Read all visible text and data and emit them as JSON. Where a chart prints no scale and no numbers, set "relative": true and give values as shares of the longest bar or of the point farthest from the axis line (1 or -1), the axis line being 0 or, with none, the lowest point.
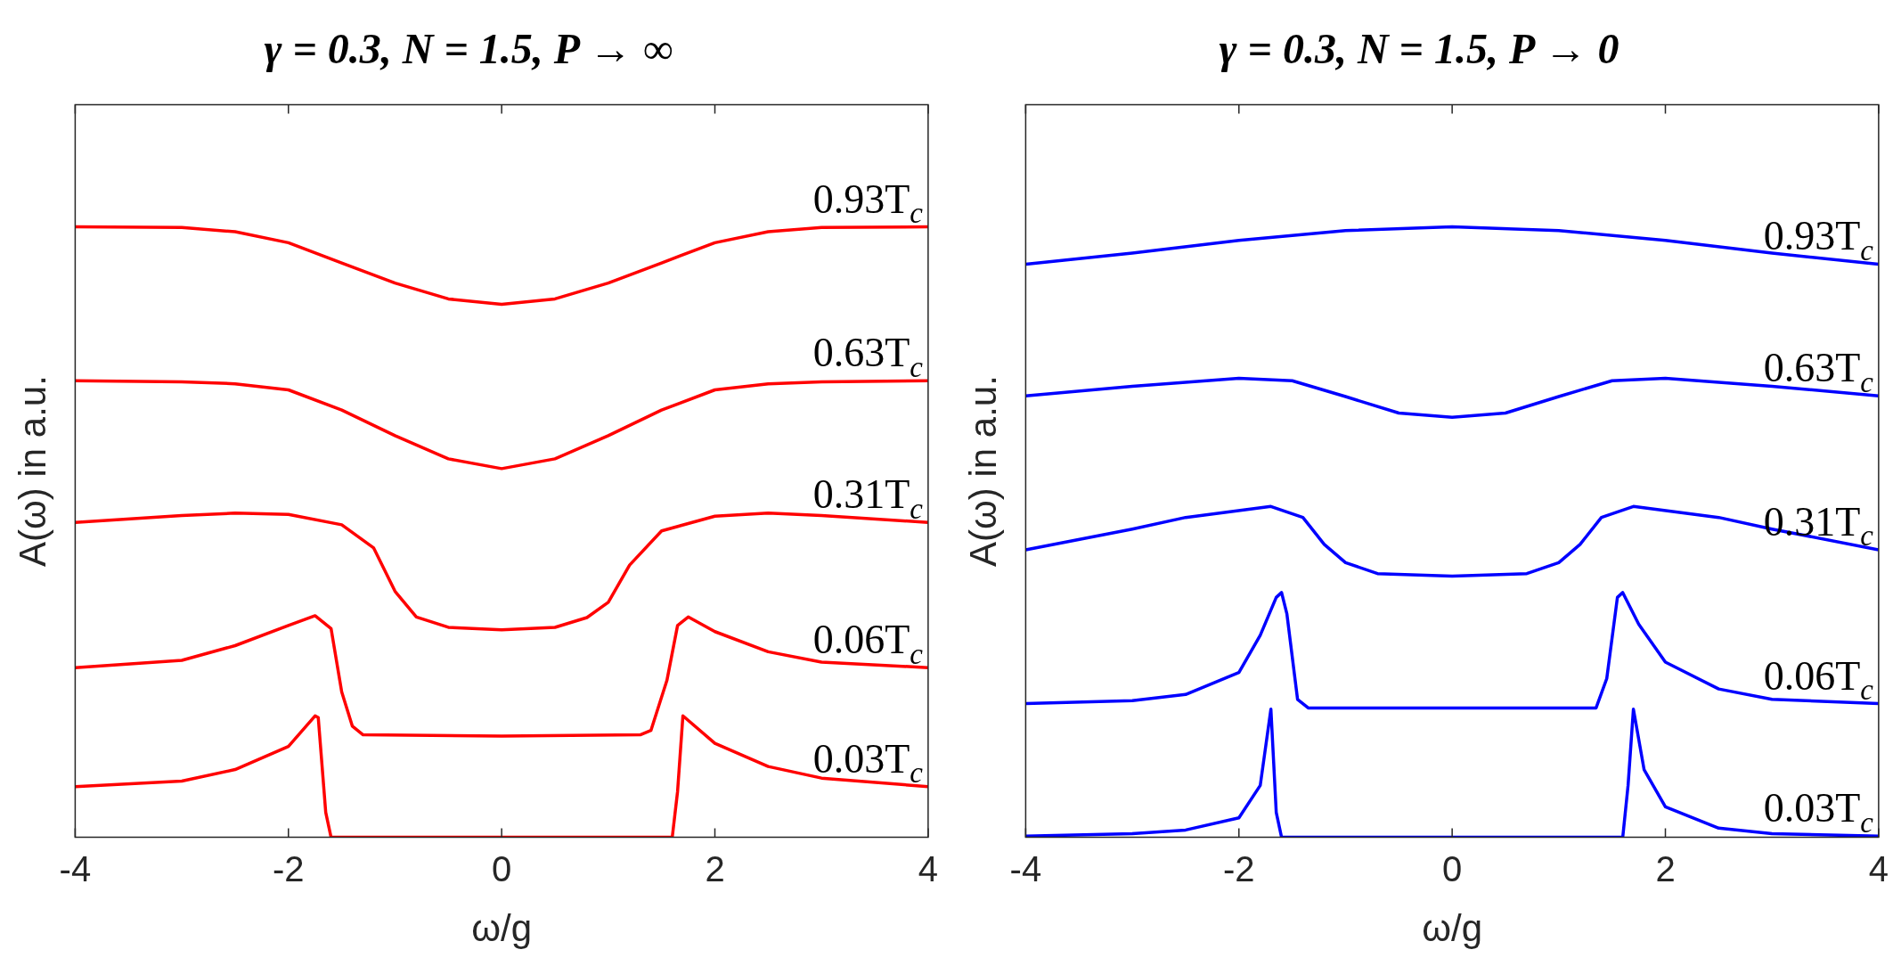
{
  "chart_data": [
    {
      "type": "line",
      "title": "γ = 0.3, N = 1.5, P → ∞",
      "xlabel": "ω/g",
      "ylabel": "A(ω) in a.u.",
      "relative": true,
      "xlim": [
        -4,
        4
      ],
      "xticks": [
        -4,
        -2,
        0,
        2,
        4
      ],
      "grid": false,
      "legend": false,
      "marker": "none",
      "line_style": "solid",
      "series": [
        {
          "name": "0.93T$_{c}$",
          "color": "#ff0000",
          "x": [
            -4,
            -3,
            -2.5,
            -2,
            -1.5,
            -1,
            -0.5,
            0,
            0.5,
            1,
            1.5,
            2,
            2.5,
            3,
            4
          ],
          "values": [
            1.0,
            0.999,
            0.992,
            0.974,
            0.941,
            0.908,
            0.882,
            0.873,
            0.882,
            0.908,
            0.941,
            0.974,
            0.992,
            0.999,
            1.0
          ]
        },
        {
          "name": "0.63T$_{c}$",
          "color": "#ff0000",
          "x": [
            -4,
            -3,
            -2.5,
            -2,
            -1.5,
            -1,
            -0.5,
            0,
            0.5,
            1,
            1.5,
            2,
            2.5,
            3,
            4
          ],
          "values": [
            0.748,
            0.746,
            0.743,
            0.733,
            0.7,
            0.658,
            0.62,
            0.604,
            0.62,
            0.658,
            0.7,
            0.733,
            0.743,
            0.746,
            0.748
          ]
        },
        {
          "name": "0.31T$_{c}$",
          "color": "#ff0000",
          "x": [
            -4,
            -3,
            -2.5,
            -2,
            -1.5,
            -1.2,
            -1,
            -0.8,
            -0.5,
            0,
            0.5,
            0.8,
            1,
            1.2,
            1.5,
            2,
            2.5,
            3,
            4
          ],
          "values": [
            0.516,
            0.527,
            0.531,
            0.529,
            0.512,
            0.474,
            0.403,
            0.361,
            0.344,
            0.34,
            0.344,
            0.36,
            0.385,
            0.446,
            0.502,
            0.526,
            0.531,
            0.527,
            0.516
          ]
        },
        {
          "name": "0.06T$_{c}$",
          "color": "#ff0000",
          "x": [
            -4,
            -3,
            -2.5,
            -2,
            -1.75,
            -1.6,
            -1.5,
            -1.4,
            -1.3,
            0,
            1.3,
            1.4,
            1.55,
            1.65,
            1.75,
            2,
            2.5,
            3,
            4
          ],
          "values": [
            0.278,
            0.29,
            0.314,
            0.347,
            0.363,
            0.342,
            0.238,
            0.182,
            0.168,
            0.166,
            0.168,
            0.175,
            0.257,
            0.347,
            0.361,
            0.337,
            0.304,
            0.287,
            0.278
          ]
        },
        {
          "name": "0.03T$_{c}$",
          "color": "#ff0000",
          "x": [
            -4,
            -3,
            -2.5,
            -2,
            -1.75,
            -1.72,
            -1.65,
            -1.6,
            1.6,
            1.65,
            1.7,
            2,
            2.5,
            3,
            4
          ],
          "values": [
            0.083,
            0.092,
            0.111,
            0.149,
            0.199,
            0.196,
            0.041,
            0,
            0,
            0.075,
            0.199,
            0.154,
            0.116,
            0.097,
            0.083
          ]
        }
      ]
    },
    {
      "type": "line",
      "title": "γ = 0.3, N = 1.5, P → 0",
      "xlabel": "ω/g",
      "ylabel": "A(ω) in a.u.",
      "relative": true,
      "xlim": [
        -4,
        4
      ],
      "xticks": [
        -4,
        -2,
        0,
        2,
        4
      ],
      "grid": false,
      "legend": false,
      "marker": "none",
      "line_style": "solid",
      "series": [
        {
          "name": "0.93T$_{c}$",
          "color": "#0000ff",
          "x": [
            -4,
            -3,
            -2,
            -1,
            0,
            1,
            2,
            3,
            4
          ],
          "values": [
            0.939,
            0.957,
            0.978,
            0.994,
            1.0,
            0.994,
            0.978,
            0.957,
            0.939
          ]
        },
        {
          "name": "0.63T$_{c}$",
          "color": "#0000ff",
          "x": [
            -4,
            -3,
            -2,
            -1.5,
            -1,
            -0.5,
            0,
            0.5,
            1,
            1.5,
            2,
            3,
            4
          ],
          "values": [
            0.723,
            0.739,
            0.752,
            0.748,
            0.722,
            0.695,
            0.688,
            0.695,
            0.722,
            0.748,
            0.752,
            0.739,
            0.723
          ]
        },
        {
          "name": "0.31T$_{c}$",
          "color": "#0000ff",
          "x": [
            -4,
            -3,
            -2.5,
            -1.7,
            -1.4,
            -1.2,
            -1,
            -0.7,
            0,
            0.7,
            1,
            1.2,
            1.4,
            1.7,
            2.5,
            3,
            4
          ],
          "values": [
            0.471,
            0.505,
            0.524,
            0.542,
            0.524,
            0.48,
            0.45,
            0.432,
            0.428,
            0.432,
            0.45,
            0.48,
            0.524,
            0.542,
            0.524,
            0.505,
            0.471
          ]
        },
        {
          "name": "0.06T$_{c}$",
          "color": "#0000ff",
          "x": [
            -4,
            -3,
            -2.5,
            -2,
            -1.8,
            -1.65,
            -1.6,
            -1.55,
            -1.45,
            -1.35,
            0,
            1.35,
            1.45,
            1.55,
            1.6,
            1.75,
            2,
            2.5,
            3,
            4
          ],
          "values": [
            0.219,
            0.224,
            0.234,
            0.27,
            0.331,
            0.393,
            0.401,
            0.366,
            0.226,
            0.212,
            0.212,
            0.212,
            0.26,
            0.393,
            0.401,
            0.349,
            0.287,
            0.243,
            0.226,
            0.219
          ]
        },
        {
          "name": "0.03T$_{c}$",
          "color": "#0000ff",
          "x": [
            -4,
            -3,
            -2.5,
            -2,
            -1.8,
            -1.7,
            -1.65,
            -1.6,
            1.6,
            1.65,
            1.7,
            1.8,
            2,
            2.5,
            3,
            4
          ],
          "values": [
            0.002,
            0.006,
            0.012,
            0.032,
            0.085,
            0.21,
            0.041,
            0,
            0,
            0.085,
            0.21,
            0.111,
            0.05,
            0.015,
            0.006,
            0.002
          ]
        }
      ]
    }
  ]
}
